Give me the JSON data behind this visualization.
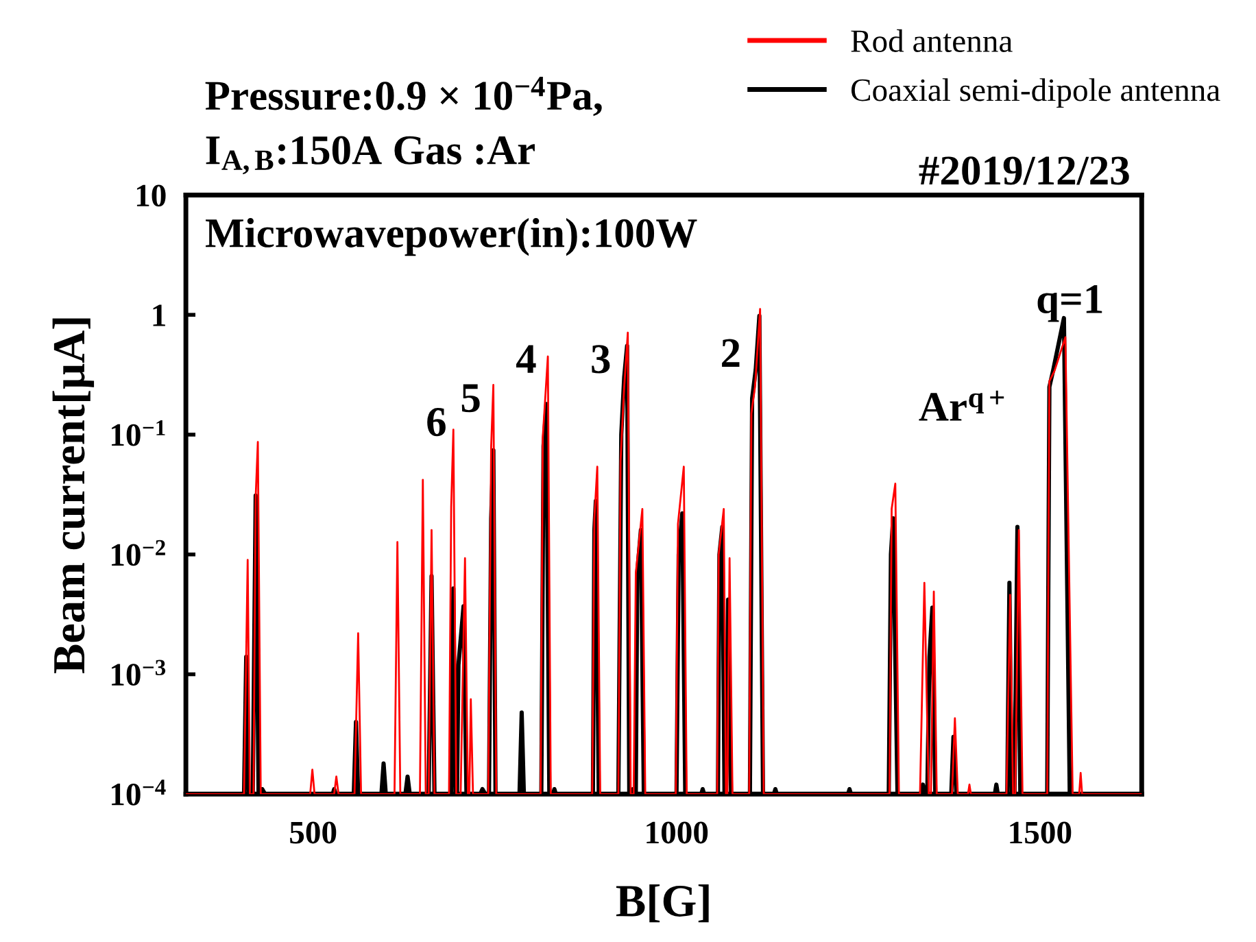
{
  "chart_data": {
    "type": "line",
    "xlabel": "B[G]",
    "ylabel": "Beam current[μA]",
    "log": "y",
    "grid": false,
    "legend": "top right",
    "marker": "none",
    "line_style": "solid",
    "xlim": [
      325,
      1640
    ],
    "xticks": [
      500,
      1000,
      1500
    ],
    "ylim": [
      0.0001,
      10
    ],
    "yticks": [
      {
        "value": 10,
        "label": "10"
      },
      {
        "value": 1,
        "label": "1"
      },
      {
        "value": 0.1,
        "label": "10$^{−1}$"
      },
      {
        "value": 0.01,
        "label": "10$^{−2}$"
      },
      {
        "value": 0.001,
        "label": "10$^{−3}$"
      },
      {
        "value": 0.0001,
        "label": "10$^{−4}$"
      }
    ],
    "annotations": [
      "Pressure:0.9 × 10$^{−4}$Pa,",
      "I$_{A,B}$:150A Gas :Ar",
      "#2019/12/23",
      "Microwavepower(in):100W",
      "6",
      "5",
      "4",
      "3",
      "2",
      "q=1",
      "Ar$^{q+}$"
    ],
    "series": [
      {
        "name": "Rod antenna",
        "color": "#ff0000",
        "x": [
          325,
          405,
          410,
          413,
          418,
          421,
          424,
          428,
          496,
          499,
          502,
          529,
          532,
          535,
          557,
          562,
          566,
          612,
          616,
          620,
          647,
          651,
          655,
          659,
          663,
          667,
          687,
          690,
          693,
          697,
          703,
          709,
          713,
          715,
          717,
          720,
          741,
          745,
          748,
          752,
          813,
          816,
          823,
          827,
          884,
          887,
          891,
          895,
          920,
          923,
          928,
          933,
          937,
          941,
          944,
          953,
          957,
          999,
          1002,
          1010,
          1014,
          1056,
          1058,
          1065,
          1068,
          1070,
          1073,
          1077,
          1100,
          1103,
          1108,
          1115,
          1120,
          1293,
          1296,
          1301,
          1306,
          1335,
          1341,
          1347,
          1350,
          1354,
          1358,
          1379,
          1383,
          1387,
          1401,
          1403,
          1405,
          1454,
          1459,
          1463,
          1466,
          1471,
          1476,
          1510,
          1513,
          1520,
          1535,
          1545,
          1554,
          1556,
          1558,
          1640
        ],
        "values": [
          0.0001,
          0.0001,
          0.009,
          0.0001,
          0.0001,
          0.03,
          0.087,
          0.0001,
          0.0001,
          0.00016,
          0.0001,
          0.0001,
          0.00014,
          0.0001,
          0.0001,
          0.0022,
          0.0001,
          0.0001,
          0.0127,
          0.0001,
          0.0001,
          0.042,
          0.0001,
          0.0001,
          0.016,
          0.0001,
          0.0001,
          0.025,
          0.11,
          0.0001,
          0.0001,
          0.0093,
          0.0001,
          0.0001,
          0.00062,
          0.0001,
          0.0001,
          0.08,
          0.26,
          0.0001,
          0.0001,
          0.095,
          0.45,
          0.0001,
          0.0001,
          0.02,
          0.054,
          0.0001,
          0.0001,
          0.06,
          0.25,
          0.71,
          0.0001,
          0.0001,
          0.007,
          0.024,
          0.0001,
          0.0001,
          0.018,
          0.054,
          0.0001,
          0.0001,
          0.01,
          0.024,
          0.0001,
          0.0001,
          0.0093,
          0.0001,
          0.0001,
          0.15,
          0.25,
          1.12,
          0.0001,
          0.0001,
          0.024,
          0.039,
          0.0001,
          0.0001,
          0.0058,
          0.0001,
          0.0001,
          0.0049,
          0.0001,
          0.0001,
          0.00043,
          0.0001,
          0.0001,
          0.00012,
          0.0001,
          0.0001,
          0.0046,
          0.0001,
          0.0001,
          0.016,
          0.0001,
          0.0001,
          0.28,
          0.34,
          0.65,
          0.0001,
          0.0001,
          0.00015,
          0.0001,
          0.0001
        ]
      },
      {
        "name": "Coaxial semi-dipole antenna",
        "color": "#000000",
        "x": [
          325,
          405,
          408,
          411,
          417,
          421,
          425,
          428,
          430,
          434,
          527,
          529,
          531,
          556,
          559,
          562,
          594,
          597,
          600,
          627,
          630,
          633,
          659,
          663,
          667,
          690,
          693,
          696,
          698,
          700,
          707,
          711,
          730,
          733,
          737,
          742,
          745,
          748,
          751,
          784,
          787,
          790,
          814,
          817,
          821,
          825,
          830,
          832,
          834,
          885,
          887,
          889,
          893,
          920,
          924,
          928,
          932,
          935,
          938,
          940,
          942,
          944,
          946,
          951,
          955,
          1000,
          1003,
          1008,
          1012,
          1034,
          1036,
          1038,
          1057,
          1059,
          1063,
          1066,
          1068,
          1071,
          1075,
          1101,
          1104,
          1109,
          1114,
          1119,
          1134,
          1136,
          1138,
          1236,
          1238,
          1240,
          1292,
          1295,
          1298,
          1304,
          1336,
          1339,
          1342,
          1345,
          1348,
          1352,
          1356,
          1378,
          1381,
          1385,
          1438,
          1440,
          1442,
          1455,
          1458,
          1461,
          1465,
          1469,
          1473,
          1510,
          1513,
          1518,
          1533,
          1541,
          1640
        ],
        "values": [
          0.0001,
          0.0001,
          0.0014,
          0.0001,
          0.0001,
          0.031,
          0.0001,
          0.0001,
          0.00011,
          0.0001,
          0.0001,
          0.00011,
          0.0001,
          0.0001,
          0.0004,
          0.0001,
          0.0001,
          0.00018,
          0.0001,
          0.0001,
          0.00014,
          0.0001,
          0.0001,
          0.0066,
          0.0001,
          0.0001,
          0.0052,
          0.0001,
          0.0001,
          0.0012,
          0.0037,
          0.0001,
          0.0001,
          0.00011,
          0.0001,
          0.0001,
          0.02,
          0.074,
          0.0001,
          0.0001,
          0.00048,
          0.0001,
          0.0001,
          0.08,
          0.18,
          0.0001,
          0.0001,
          0.00011,
          0.0001,
          0.0001,
          0.016,
          0.028,
          0.0001,
          0.0001,
          0.1,
          0.3,
          0.55,
          0.0001,
          0.0001,
          0.00011,
          0.0001,
          0.0001,
          0.007,
          0.016,
          0.0001,
          0.0001,
          0.01,
          0.022,
          0.0001,
          0.0001,
          0.00011,
          0.0001,
          0.0001,
          0.01,
          0.017,
          0.0001,
          0.0001,
          0.0042,
          0.0001,
          0.0001,
          0.2,
          0.35,
          0.98,
          0.0001,
          0.0001,
          0.00011,
          0.0001,
          0.0001,
          0.00011,
          0.0001,
          0.0001,
          0.01,
          0.02,
          0.0001,
          0.0001,
          0.00012,
          0.0001,
          0.0001,
          0.0014,
          0.0036,
          0.0001,
          0.0001,
          0.0003,
          0.0001,
          0.0001,
          0.00012,
          0.0001,
          0.0001,
          0.0058,
          0.0001,
          0.0001,
          0.017,
          0.0001,
          0.0001,
          0.25,
          0.34,
          0.94,
          0.0001,
          0.0001
        ]
      }
    ]
  }
}
